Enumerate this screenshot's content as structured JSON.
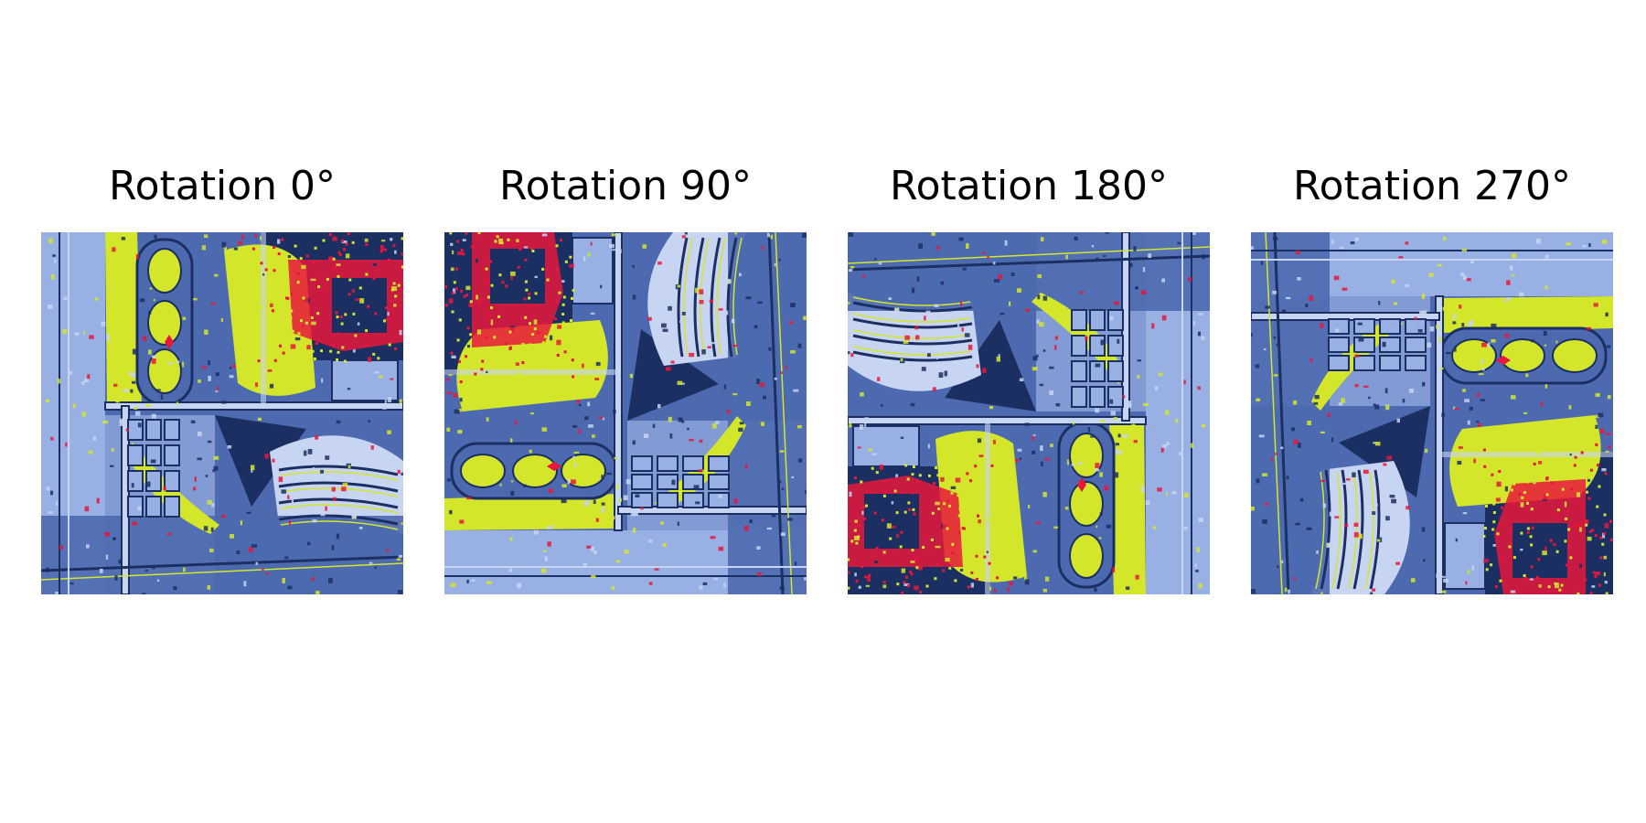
{
  "figure": {
    "panels": [
      {
        "title": "Rotation 0°",
        "rotation_deg": 0
      },
      {
        "title": "Rotation 90°",
        "rotation_deg": 90
      },
      {
        "title": "Rotation 180°",
        "rotation_deg": 180
      },
      {
        "title": "Rotation 270°",
        "rotation_deg": 270
      }
    ],
    "colors": {
      "dark_blue": "#1c2f63",
      "mid_blue": "#4d6ab0",
      "light_blue": "#98b0e4",
      "pale_blue": "#c7d4f2",
      "yellow_green": "#d4e62a",
      "red": "#e8163c"
    }
  }
}
